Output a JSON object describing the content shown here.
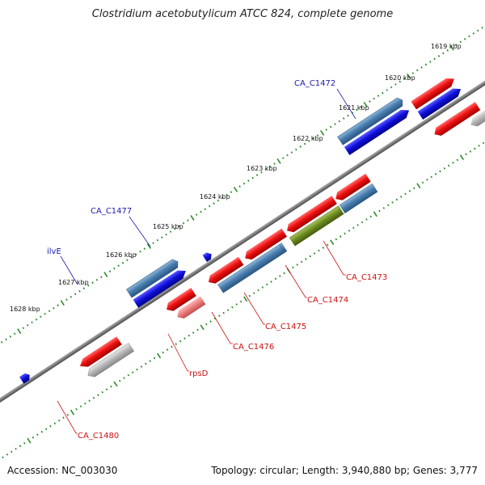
{
  "title": "Clostridium acetobutylicum ATCC 824, complete genome",
  "footer": {
    "accession": "Accession: NC_003030",
    "topology": "Topology: circular; Length: 3,940,880 bp; Genes: 3,777"
  },
  "kbp_ticks": [
    {
      "pos": 1619,
      "label": "1619 kbp"
    },
    {
      "pos": 1620,
      "label": "1620 kbp"
    },
    {
      "pos": 1621,
      "label": "1621 kbp"
    },
    {
      "pos": 1622,
      "label": "1622 kbp"
    },
    {
      "pos": 1623,
      "label": "1623 kbp"
    },
    {
      "pos": 1624,
      "label": "1624 kbp"
    },
    {
      "pos": 1625,
      "label": "1625 kbp"
    },
    {
      "pos": 1626,
      "label": "1626 kbp"
    },
    {
      "pos": 1627,
      "label": "1627 kbp"
    },
    {
      "pos": 1628,
      "label": "1628 kbp"
    }
  ],
  "colors": {
    "backbone": "#7a7a7a",
    "red": "#ee1111",
    "blue": "#1111dd",
    "steel": "#4a7fb0",
    "olive": "#6f8e22",
    "gray": "#b8b8b8",
    "pink": "#ef8080",
    "tick_green": "#2d8a2d",
    "label_blue": "#1a1aaa",
    "label_red": "#cc1111"
  },
  "genes": [
    {
      "name": "CA_C1472",
      "strand": "plus",
      "color": "steel",
      "label_side": "top"
    },
    {
      "name": "CA_C1477",
      "strand": "plus",
      "color": "blue",
      "label_side": "top"
    },
    {
      "name": "ilvE",
      "strand": "plus",
      "color": "steel",
      "label_side": "top"
    },
    {
      "name": "CA_C1473",
      "strand": "minus",
      "color": "steel",
      "label_side": "bottom"
    },
    {
      "name": "CA_C1474",
      "strand": "minus",
      "color": "olive",
      "label_side": "bottom"
    },
    {
      "name": "CA_C1475",
      "strand": "minus",
      "color": "steel",
      "label_side": "bottom"
    },
    {
      "name": "CA_C1476",
      "strand": "minus",
      "color": "steel",
      "label_side": "bottom"
    },
    {
      "name": "rpsD",
      "strand": "minus",
      "color": "pink",
      "label_side": "bottom"
    },
    {
      "name": "CA_C1480",
      "strand": "minus",
      "color": "gray",
      "label_side": "bottom"
    }
  ]
}
